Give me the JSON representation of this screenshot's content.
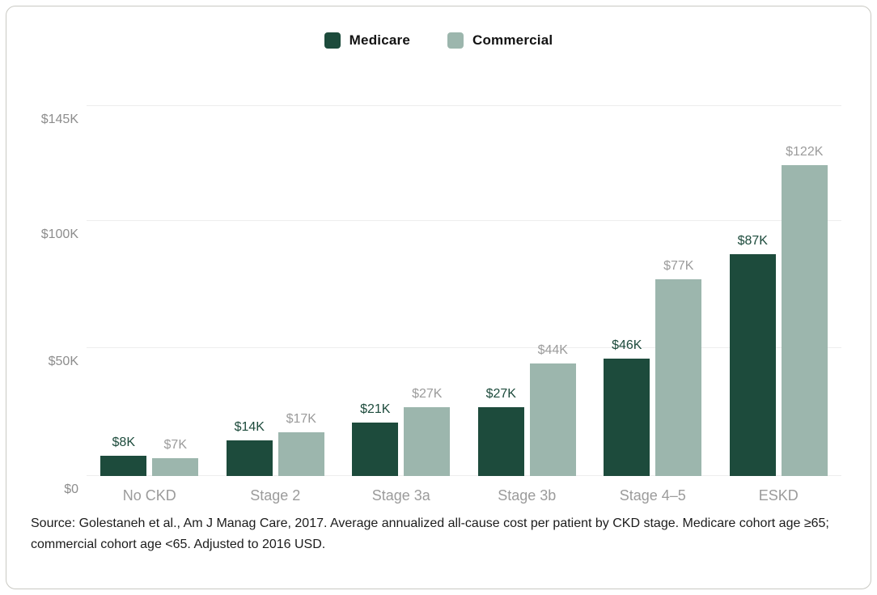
{
  "legend": {
    "items": [
      {
        "label": "Medicare",
        "color": "#1d4b3c"
      },
      {
        "label": "Commercial",
        "color": "#9cb6ad"
      }
    ]
  },
  "chart_data": {
    "type": "bar",
    "title": "",
    "xlabel": "",
    "ylabel": "",
    "categories": [
      "No CKD",
      "Stage 2",
      "Stage 3a",
      "Stage 3b",
      "Stage 4–5",
      "ESKD"
    ],
    "series": [
      {
        "name": "Medicare",
        "color": "#1d4b3c",
        "label_color": "#1d4b3c",
        "values": [
          8,
          14,
          21,
          27,
          46,
          87
        ],
        "labels": [
          "$8K",
          "$14K",
          "$21K",
          "$27K",
          "$46K",
          "$87K"
        ]
      },
      {
        "name": "Commercial",
        "color": "#9cb6ad",
        "label_color": "#9b9b9b",
        "values": [
          7,
          17,
          27,
          44,
          77,
          122
        ],
        "labels": [
          "$7K",
          "$17K",
          "$27K",
          "$44K",
          "$77K",
          "$122K"
        ]
      }
    ],
    "y_ticks": [
      {
        "value": 0,
        "label": "$0"
      },
      {
        "value": 50,
        "label": "$50K"
      },
      {
        "value": 100,
        "label": "$100K"
      },
      {
        "value": 145,
        "label": "$145K"
      }
    ],
    "ylim": [
      0,
      145
    ],
    "units": "USD thousands per patient per year",
    "grid": "horizontal",
    "legend_position": "top-center"
  },
  "source": {
    "lines": [
      "Source: Golestaneh et al., Am J Manag Care, 2017. Average annualized all-cause cost per patient by CKD stage. Medicare cohort age ≥65;",
      "commercial cohort age <65. Adjusted to 2016 USD."
    ]
  }
}
